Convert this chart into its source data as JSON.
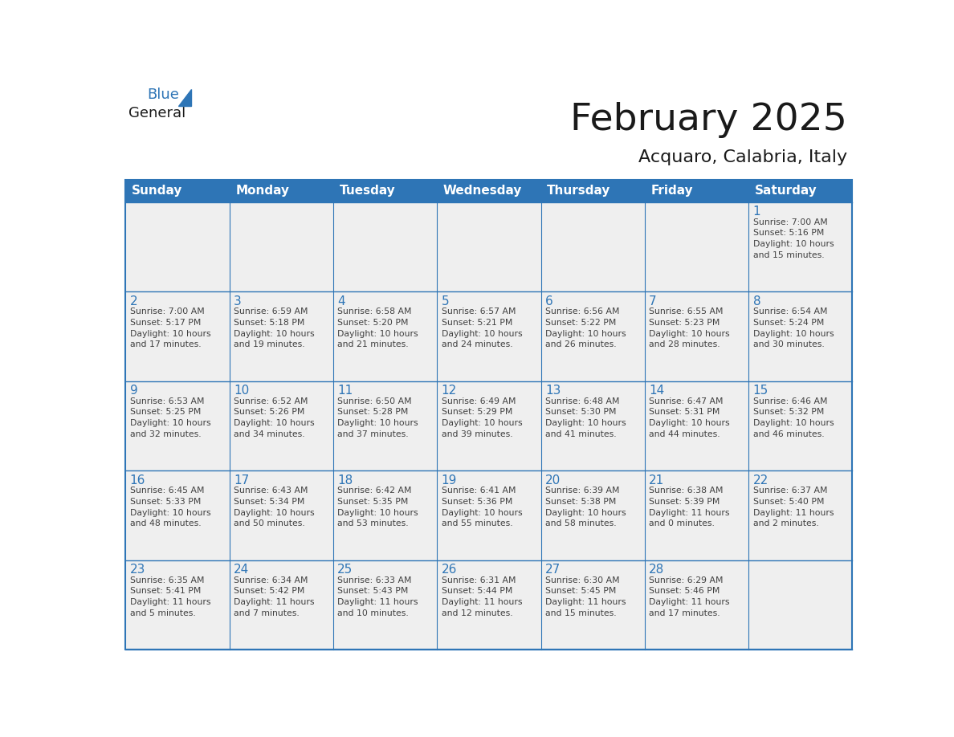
{
  "title": "February 2025",
  "subtitle": "Acquaro, Calabria, Italy",
  "header_color": "#2E75B6",
  "header_text_color": "#FFFFFF",
  "cell_bg_even": "#EFEFEF",
  "cell_bg_odd": "#EFEFEF",
  "grid_line_color": "#2E75B6",
  "day_number_color": "#2E75B6",
  "cell_text_color": "#404040",
  "title_color": "#1A1A1A",
  "subtitle_color": "#1A1A1A",
  "days_of_week": [
    "Sunday",
    "Monday",
    "Tuesday",
    "Wednesday",
    "Thursday",
    "Friday",
    "Saturday"
  ],
  "weeks": [
    [
      {
        "day": "",
        "text": ""
      },
      {
        "day": "",
        "text": ""
      },
      {
        "day": "",
        "text": ""
      },
      {
        "day": "",
        "text": ""
      },
      {
        "day": "",
        "text": ""
      },
      {
        "day": "",
        "text": ""
      },
      {
        "day": "1",
        "text": "Sunrise: 7:00 AM\nSunset: 5:16 PM\nDaylight: 10 hours\nand 15 minutes."
      }
    ],
    [
      {
        "day": "2",
        "text": "Sunrise: 7:00 AM\nSunset: 5:17 PM\nDaylight: 10 hours\nand 17 minutes."
      },
      {
        "day": "3",
        "text": "Sunrise: 6:59 AM\nSunset: 5:18 PM\nDaylight: 10 hours\nand 19 minutes."
      },
      {
        "day": "4",
        "text": "Sunrise: 6:58 AM\nSunset: 5:20 PM\nDaylight: 10 hours\nand 21 minutes."
      },
      {
        "day": "5",
        "text": "Sunrise: 6:57 AM\nSunset: 5:21 PM\nDaylight: 10 hours\nand 24 minutes."
      },
      {
        "day": "6",
        "text": "Sunrise: 6:56 AM\nSunset: 5:22 PM\nDaylight: 10 hours\nand 26 minutes."
      },
      {
        "day": "7",
        "text": "Sunrise: 6:55 AM\nSunset: 5:23 PM\nDaylight: 10 hours\nand 28 minutes."
      },
      {
        "day": "8",
        "text": "Sunrise: 6:54 AM\nSunset: 5:24 PM\nDaylight: 10 hours\nand 30 minutes."
      }
    ],
    [
      {
        "day": "9",
        "text": "Sunrise: 6:53 AM\nSunset: 5:25 PM\nDaylight: 10 hours\nand 32 minutes."
      },
      {
        "day": "10",
        "text": "Sunrise: 6:52 AM\nSunset: 5:26 PM\nDaylight: 10 hours\nand 34 minutes."
      },
      {
        "day": "11",
        "text": "Sunrise: 6:50 AM\nSunset: 5:28 PM\nDaylight: 10 hours\nand 37 minutes."
      },
      {
        "day": "12",
        "text": "Sunrise: 6:49 AM\nSunset: 5:29 PM\nDaylight: 10 hours\nand 39 minutes."
      },
      {
        "day": "13",
        "text": "Sunrise: 6:48 AM\nSunset: 5:30 PM\nDaylight: 10 hours\nand 41 minutes."
      },
      {
        "day": "14",
        "text": "Sunrise: 6:47 AM\nSunset: 5:31 PM\nDaylight: 10 hours\nand 44 minutes."
      },
      {
        "day": "15",
        "text": "Sunrise: 6:46 AM\nSunset: 5:32 PM\nDaylight: 10 hours\nand 46 minutes."
      }
    ],
    [
      {
        "day": "16",
        "text": "Sunrise: 6:45 AM\nSunset: 5:33 PM\nDaylight: 10 hours\nand 48 minutes."
      },
      {
        "day": "17",
        "text": "Sunrise: 6:43 AM\nSunset: 5:34 PM\nDaylight: 10 hours\nand 50 minutes."
      },
      {
        "day": "18",
        "text": "Sunrise: 6:42 AM\nSunset: 5:35 PM\nDaylight: 10 hours\nand 53 minutes."
      },
      {
        "day": "19",
        "text": "Sunrise: 6:41 AM\nSunset: 5:36 PM\nDaylight: 10 hours\nand 55 minutes."
      },
      {
        "day": "20",
        "text": "Sunrise: 6:39 AM\nSunset: 5:38 PM\nDaylight: 10 hours\nand 58 minutes."
      },
      {
        "day": "21",
        "text": "Sunrise: 6:38 AM\nSunset: 5:39 PM\nDaylight: 11 hours\nand 0 minutes."
      },
      {
        "day": "22",
        "text": "Sunrise: 6:37 AM\nSunset: 5:40 PM\nDaylight: 11 hours\nand 2 minutes."
      }
    ],
    [
      {
        "day": "23",
        "text": "Sunrise: 6:35 AM\nSunset: 5:41 PM\nDaylight: 11 hours\nand 5 minutes."
      },
      {
        "day": "24",
        "text": "Sunrise: 6:34 AM\nSunset: 5:42 PM\nDaylight: 11 hours\nand 7 minutes."
      },
      {
        "day": "25",
        "text": "Sunrise: 6:33 AM\nSunset: 5:43 PM\nDaylight: 11 hours\nand 10 minutes."
      },
      {
        "day": "26",
        "text": "Sunrise: 6:31 AM\nSunset: 5:44 PM\nDaylight: 11 hours\nand 12 minutes."
      },
      {
        "day": "27",
        "text": "Sunrise: 6:30 AM\nSunset: 5:45 PM\nDaylight: 11 hours\nand 15 minutes."
      },
      {
        "day": "28",
        "text": "Sunrise: 6:29 AM\nSunset: 5:46 PM\nDaylight: 11 hours\nand 17 minutes."
      },
      {
        "day": "",
        "text": ""
      }
    ]
  ],
  "logo_text_general": "General",
  "logo_text_blue": "Blue",
  "logo_triangle_color": "#2E75B6",
  "logo_general_color": "#1A1A1A",
  "logo_blue_color": "#2E75B6",
  "fig_width": 11.88,
  "fig_height": 9.18,
  "dpi": 100
}
